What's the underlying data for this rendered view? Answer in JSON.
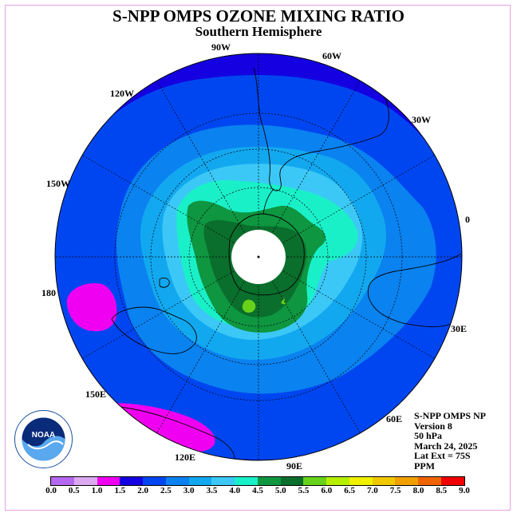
{
  "title": "S-NPP OMPS OZONE MIXING RATIO",
  "subtitle": "Southern Hemisphere",
  "longitude_labels": [
    "90W",
    "60W",
    "30W",
    "0",
    "30E",
    "60E",
    "90E",
    "120E",
    "150E",
    "180",
    "150W",
    "120W"
  ],
  "info": [
    "S-NPP OMPS NP",
    "Version 8",
    "50 hPa",
    "March 24, 2025",
    "Lat Ext = 75S",
    "PPM"
  ],
  "logo": {
    "text": "NOAA",
    "icon": "noaa-logo-icon"
  },
  "colorbar": {
    "ticks": [
      "0.0",
      "0.5",
      "1.0",
      "1.5",
      "2.0",
      "2.5",
      "3.0",
      "3.5",
      "4.0",
      "4.5",
      "5.0",
      "5.5",
      "6.0",
      "6.5",
      "7.0",
      "7.5",
      "8.0",
      "8.5",
      "9.0"
    ],
    "colors": [
      "#b469f0",
      "#dca9f0",
      "#f000f0",
      "#1400e0",
      "#0046f0",
      "#0a82f0",
      "#12a8f0",
      "#3cc8f6",
      "#1af0c8",
      "#0e9640",
      "#0a6e2c",
      "#68d21a",
      "#b4f000",
      "#f0f000",
      "#f0c800",
      "#f0a000",
      "#f06400",
      "#f00000",
      "#8c5a3a"
    ]
  },
  "map": {
    "projection": "south polar stereographic",
    "center_lat": -90,
    "extent_lat": 0,
    "polar_gap_lat": -75,
    "background_color": "#1400e0",
    "polar_cap_color": "#ffffff"
  }
}
